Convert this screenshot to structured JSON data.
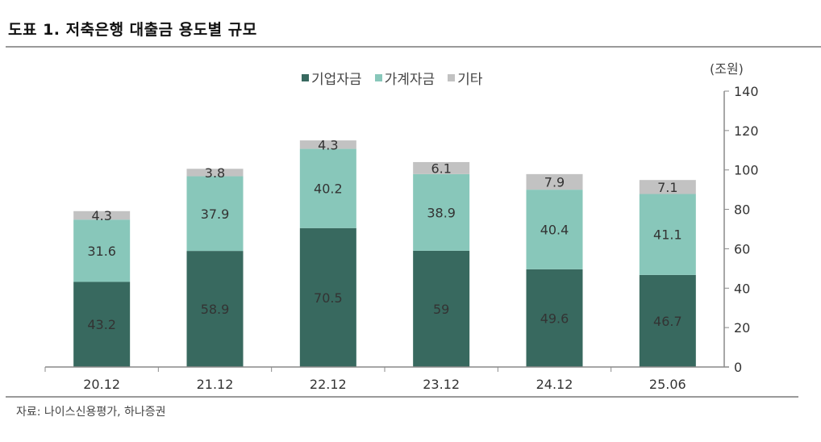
{
  "header": {
    "title": "도표 1. 저축은행 대출금 용도별 규모"
  },
  "footer": {
    "source": "자료: 나이스신용평가, 하나증권"
  },
  "legend": {
    "items": [
      {
        "label": "기업자금",
        "color": "#38695f"
      },
      {
        "label": "가계자금",
        "color": "#88c7ba"
      },
      {
        "label": "기타",
        "color": "#c2c2c2"
      }
    ]
  },
  "axis": {
    "unit_label": "(조원)"
  },
  "chart_data": {
    "type": "bar",
    "stacked": true,
    "title": "도표 1. 저축은행 대출금 용도별 규모",
    "xlabel": "",
    "ylabel": "(조원)",
    "ylim": [
      0,
      140
    ],
    "yticks": [
      0,
      20,
      40,
      60,
      80,
      100,
      120,
      140
    ],
    "y_axis_position": "right",
    "grid": false,
    "legend_position": "top",
    "categories": [
      "20.12",
      "21.12",
      "22.12",
      "23.12",
      "24.12",
      "25.06"
    ],
    "series": [
      {
        "name": "기업자금",
        "color": "#38695f",
        "values": [
          43.2,
          58.9,
          70.5,
          59,
          49.6,
          46.7
        ]
      },
      {
        "name": "가계자금",
        "color": "#88c7ba",
        "values": [
          31.6,
          37.9,
          40.2,
          38.9,
          40.4,
          41.1
        ]
      },
      {
        "name": "기타",
        "color": "#c2c2c2",
        "values": [
          4.3,
          3.8,
          4.3,
          6.1,
          7.9,
          7.1
        ]
      }
    ],
    "data_labels": true
  }
}
